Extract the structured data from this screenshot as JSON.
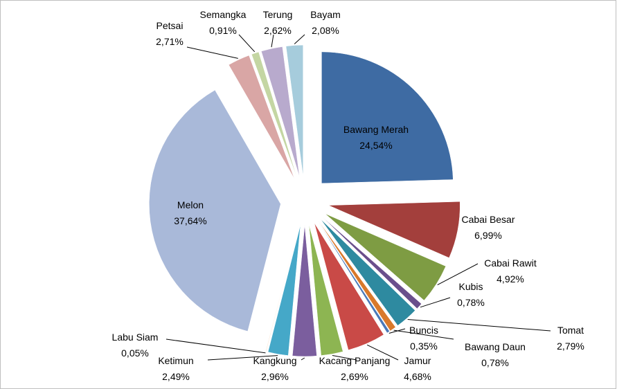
{
  "chart_data": {
    "type": "pie",
    "categories": [
      "Bawang Merah",
      "Cabai Besar",
      "Cabai Rawit",
      "Kubis",
      "Tomat",
      "Bawang Daun",
      "Buncis",
      "Jamur",
      "Kacang Panjang",
      "Kangkung",
      "Ketimun",
      "Labu Siam",
      "Melon",
      "Petsai",
      "Semangka",
      "Terung",
      "Bayam"
    ],
    "values": [
      24.54,
      6.99,
      4.92,
      0.78,
      2.79,
      0.78,
      0.35,
      4.68,
      2.69,
      2.96,
      2.49,
      0.05,
      37.64,
      2.71,
      0.91,
      2.62,
      2.08
    ],
    "value_labels": [
      "24,54%",
      "6,99%",
      "4,92%",
      "0,78%",
      "2,79%",
      "0,78%",
      "0,35%",
      "4,68%",
      "2,69%",
      "2,96%",
      "2,49%",
      "0,05%",
      "37,64%",
      "2,71%",
      "0,91%",
      "2,62%",
      "2,08%"
    ],
    "colors": [
      "#3e6ba3",
      "#a33f3c",
      "#7e9c43",
      "#6a4f8c",
      "#2e8aa0",
      "#d9792b",
      "#4a78b8",
      "#c94a47",
      "#8db552",
      "#7b5e9e",
      "#45a8c8",
      "#f29a4a",
      "#a9b9d9",
      "#d9a6a5",
      "#c4d6a3",
      "#b8aacd",
      "#a6ccdc"
    ]
  }
}
